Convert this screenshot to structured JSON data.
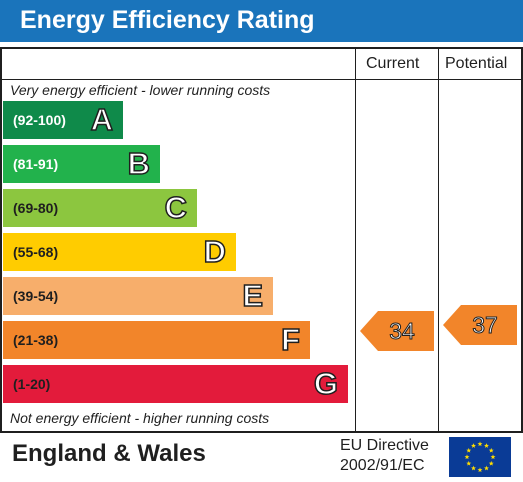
{
  "title": "Energy Efficiency Rating",
  "columns": {
    "current": "Current",
    "potential": "Potential"
  },
  "notes": {
    "top": "Very energy efficient - lower running costs",
    "bottom": "Not energy efficient - higher running costs"
  },
  "bands": [
    {
      "range": "(92-100)",
      "letter": "A",
      "color": "#0f8a4a",
      "range_color": "#ffffff"
    },
    {
      "range": "(81-91)",
      "letter": "B",
      "color": "#22b24c",
      "range_color": "#ffffff"
    },
    {
      "range": "(69-80)",
      "letter": "C",
      "color": "#8cc63f",
      "range_color": "#1f1f1f"
    },
    {
      "range": "(55-68)",
      "letter": "D",
      "color": "#ffcc00",
      "range_color": "#1f1f1f"
    },
    {
      "range": "(39-54)",
      "letter": "E",
      "color": "#f7ae6b",
      "range_color": "#1f1f1f"
    },
    {
      "range": "(21-38)",
      "letter": "F",
      "color": "#f2852a",
      "range_color": "#1f1f1f"
    },
    {
      "range": "(1-20)",
      "letter": "G",
      "color": "#e31b3b",
      "range_color": "#1f1f1f"
    }
  ],
  "ratings": {
    "current": {
      "value": "34",
      "band": "F",
      "color": "#f2852a"
    },
    "potential": {
      "value": "37",
      "band": "F",
      "color": "#f2852a"
    }
  },
  "footer": {
    "region": "England & Wales",
    "directive_line1": "EU Directive",
    "directive_line2": "2002/91/EC",
    "flag_color": "#0a3b96",
    "star_color": "#ffdd00"
  }
}
